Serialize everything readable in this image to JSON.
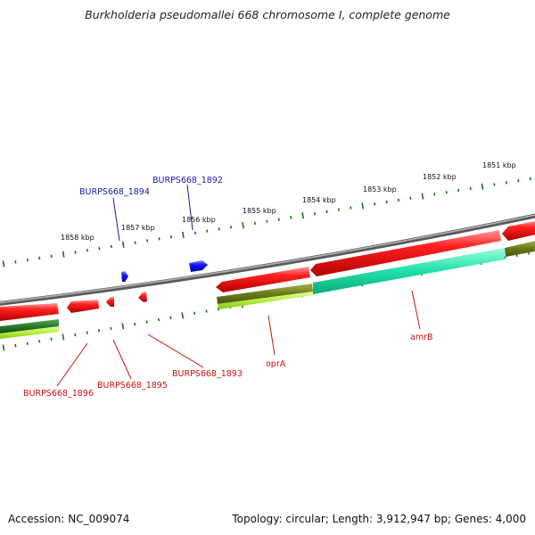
{
  "title": "Burkholderia pseudomallei 668 chromosome I, complete genome",
  "footer": {
    "accession": "Accession: NC_009074",
    "summary": "Topology: circular; Length: 3,912,947 bp; Genes: 4,000"
  },
  "scale_labels": [
    "1851 kbp",
    "1852 kbp",
    "1853 kbp",
    "1854 kbp",
    "1855 kbp",
    "1856 kbp",
    "1857 kbp",
    "1858 kbp"
  ],
  "gene_labels": {
    "BURPS668_1892": "BURPS668_1892",
    "BURPS668_1894": "BURPS668_1894",
    "BURPS668_1893": "BURPS668_1893",
    "BURPS668_1895": "BURPS668_1895",
    "BURPS668_1896": "BURPS668_1896",
    "oprA": "oprA",
    "amrB": "amrB"
  },
  "colors": {
    "backbone": "#8a8a8a",
    "forward_cds": "#1a1aee",
    "reverse_cds": "#ee1111",
    "label_forward": "#1a1aaa",
    "label_reverse": "#cc1111",
    "tick": "#1e6e1e",
    "feature_olive": "#6b7a1a",
    "feature_lime": "#b5f03a",
    "feature_teal": "#20e0a8",
    "feature_darkgreen": "#2a7a2a"
  }
}
